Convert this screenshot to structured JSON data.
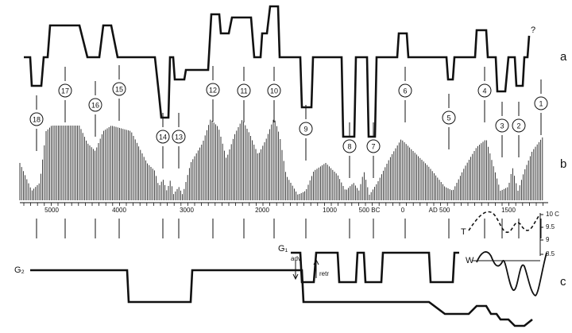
{
  "panel_labels": [
    "a",
    "b",
    "c"
  ],
  "period_numbers": [
    1,
    2,
    3,
    4,
    5,
    6,
    7,
    8,
    9,
    10,
    11,
    12,
    13,
    14,
    15,
    16,
    17,
    18
  ],
  "question_mark": "?",
  "time_axis": [
    "5000",
    "4000",
    "3000",
    "2000",
    "1000",
    "500 BC",
    "0",
    "AD 500",
    "1500"
  ],
  "temperature_scale": [
    "10 C",
    "9.5",
    "9",
    "8.5"
  ],
  "curve_labels": {
    "T": "T",
    "W": "W",
    "G1": "G₁",
    "G2": "G₂",
    "adv": "adv",
    "retr": "retr"
  }
}
